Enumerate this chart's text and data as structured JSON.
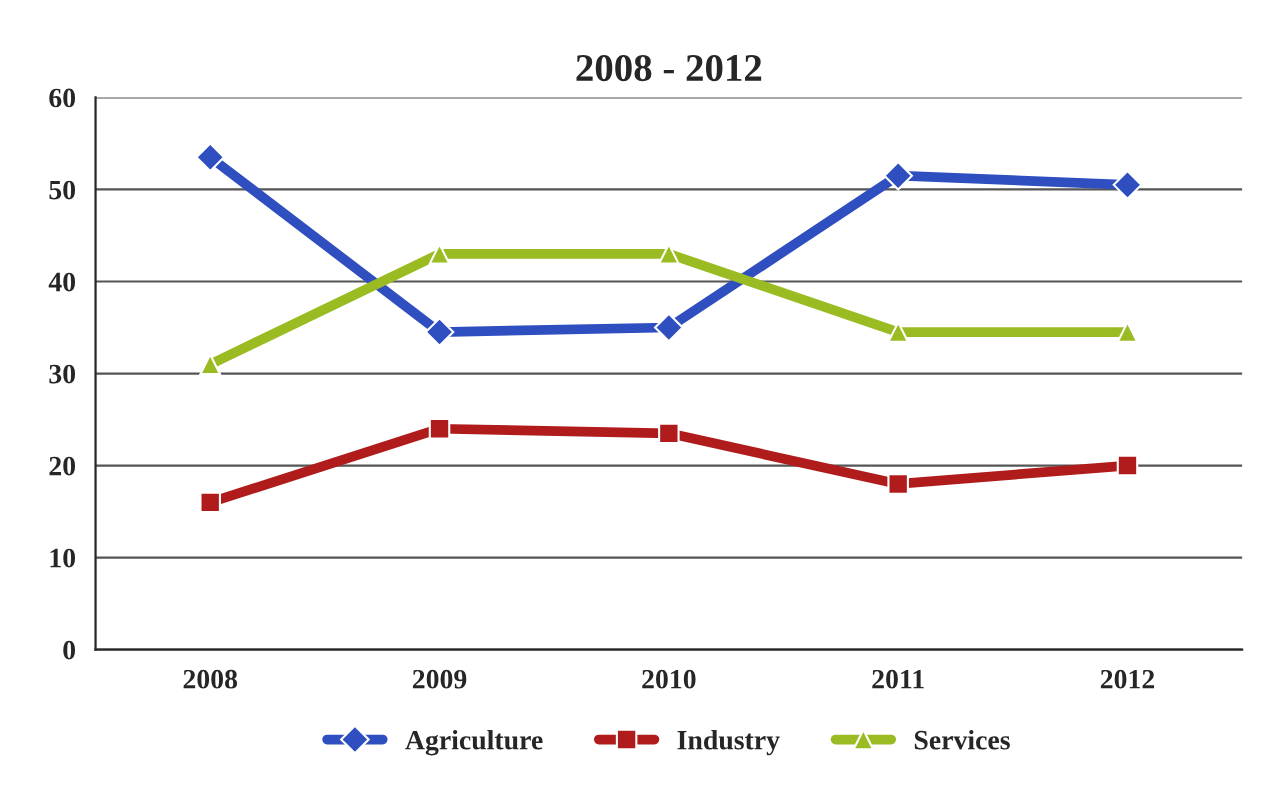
{
  "chart_data": {
    "type": "line",
    "title": "2008 - 2012",
    "categories": [
      "2008",
      "2009",
      "2010",
      "2011",
      "2012"
    ],
    "series": [
      {
        "name": "Agriculture",
        "color": "#2f4fc0",
        "marker": "diamond",
        "values": [
          53.5,
          34.5,
          35,
          51.5,
          50.5
        ]
      },
      {
        "name": "Industry",
        "color": "#b01c1c",
        "marker": "square",
        "values": [
          16,
          24,
          23.5,
          18,
          20
        ]
      },
      {
        "name": "Services",
        "color": "#9bbb22",
        "marker": "triangle",
        "values": [
          31,
          43,
          43,
          34.5,
          34.5
        ]
      }
    ],
    "ylim": [
      0,
      60
    ],
    "yticks": [
      0,
      10,
      20,
      30,
      40,
      50,
      60
    ],
    "grid": "y",
    "legend": "bottom"
  }
}
